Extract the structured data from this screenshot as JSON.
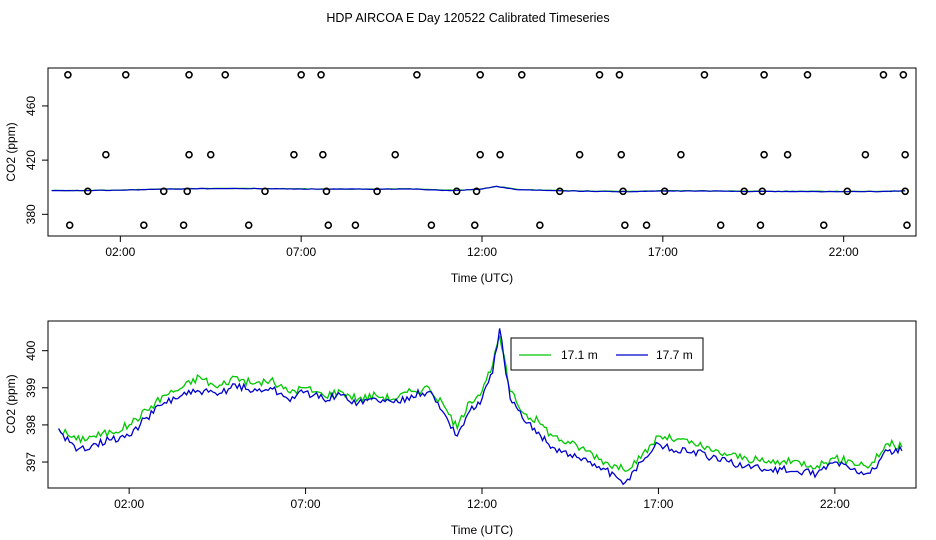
{
  "figure": {
    "title": "HDP AIRCOA E  Day 120522  Calibrated Timeseries"
  },
  "colors": {
    "series_17_1": "#00c800",
    "series_17_7": "#0000cc",
    "points": "#000000"
  },
  "chart_data": [
    {
      "type": "scatter",
      "xlabel": "Time (UTC)",
      "ylabel": "CO2 (ppm)",
      "xlim": [
        0.0,
        24.0
      ],
      "ylim": [
        364,
        488
      ],
      "xticks": [
        2,
        7,
        12,
        17,
        22
      ],
      "xtick_labels": [
        "02:00",
        "07:00",
        "12:00",
        "17:00",
        "22:00"
      ],
      "yticks": [
        380,
        420,
        460
      ],
      "ytick_labels": [
        "380",
        "420",
        "460"
      ],
      "points": {
        "x": [
          0.55,
          2.15,
          3.9,
          4.9,
          7.0,
          7.55,
          10.2,
          11.95,
          13.1,
          15.25,
          15.8,
          18.15,
          19.8,
          21.0,
          23.1,
          23.65,
          1.6,
          3.9,
          4.5,
          6.8,
          7.6,
          9.6,
          11.95,
          12.5,
          14.7,
          15.85,
          17.5,
          19.8,
          20.45,
          22.6,
          23.7,
          1.1,
          3.2,
          3.85,
          6.0,
          7.7,
          9.1,
          11.3,
          11.85,
          14.15,
          15.9,
          17.05,
          19.25,
          19.75,
          22.1,
          23.7,
          0.6,
          2.65,
          3.75,
          5.55,
          7.75,
          8.5,
          10.6,
          11.8,
          13.6,
          15.95,
          16.55,
          18.6,
          19.7,
          21.45,
          23.75
        ],
        "y": [
          483,
          483,
          483,
          483,
          483,
          483,
          483,
          483,
          483,
          483,
          483,
          483,
          483,
          483,
          483,
          483,
          424,
          424,
          424,
          424,
          424,
          424,
          424,
          424,
          424,
          424,
          424,
          424,
          424,
          424,
          424,
          397,
          397,
          397,
          397,
          397,
          397,
          397,
          397,
          397,
          397,
          397,
          397,
          397,
          397,
          397,
          372,
          372,
          372,
          372,
          372,
          372,
          372,
          372,
          372,
          372,
          372,
          372,
          372,
          372,
          372
        ]
      },
      "series": [
        {
          "name": "17.1 m",
          "x": [
            0.1,
            1,
            2,
            3,
            4,
            5,
            6,
            7,
            8,
            9,
            10,
            11,
            11.5,
            12,
            12.4,
            13,
            14,
            15,
            16,
            17,
            18,
            19,
            20,
            21,
            22,
            23,
            23.7
          ],
          "y": [
            397.6,
            397.6,
            397.9,
            398.6,
            399.0,
            399.1,
            399.0,
            398.8,
            398.7,
            398.6,
            398.9,
            397.8,
            397.9,
            398.8,
            400.7,
            398.3,
            397.7,
            397.2,
            396.9,
            397.4,
            397.4,
            397.2,
            397.0,
            397.0,
            396.9,
            396.9,
            397.4
          ]
        },
        {
          "name": "17.7 m",
          "x": [
            0.1,
            1,
            2,
            3,
            4,
            5,
            6,
            7,
            8,
            9,
            10,
            11,
            11.5,
            12,
            12.4,
            13,
            14,
            15,
            16,
            17,
            18,
            19,
            20,
            21,
            22,
            23,
            23.7
          ],
          "y": [
            397.4,
            397.5,
            397.8,
            398.5,
            398.9,
            399.0,
            398.9,
            398.7,
            398.6,
            398.5,
            398.8,
            397.7,
            397.8,
            398.7,
            400.6,
            398.1,
            397.5,
            397.0,
            396.7,
            397.2,
            397.2,
            397.0,
            396.9,
            396.8,
            396.7,
            396.8,
            397.3
          ]
        }
      ]
    },
    {
      "type": "line",
      "xlabel": "Time (UTC)",
      "ylabel": "CO2 (ppm)",
      "xlim": [
        -0.3,
        24.3
      ],
      "ylim": [
        396.3,
        400.8
      ],
      "xticks": [
        2,
        7,
        12,
        17,
        22
      ],
      "xtick_labels": [
        "02:00",
        "07:00",
        "12:00",
        "17:00",
        "22:00"
      ],
      "yticks": [
        397,
        398,
        399,
        400
      ],
      "ytick_labels": [
        "397",
        "398",
        "399",
        "400"
      ],
      "legend": {
        "position": "top-right-of-center",
        "entries": [
          "17.1 m",
          "17.7 m"
        ]
      },
      "series": [
        {
          "name": "17.1 m",
          "x": [
            0.0,
            0.5,
            1.0,
            1.5,
            2.0,
            2.5,
            3.0,
            3.5,
            4.0,
            4.5,
            5.0,
            5.5,
            6.0,
            6.5,
            7.0,
            7.5,
            8.0,
            8.5,
            9.0,
            9.5,
            10.0,
            10.5,
            11.0,
            11.3,
            11.6,
            12.0,
            12.3,
            12.5,
            12.8,
            13.2,
            13.6,
            14.0,
            14.5,
            15.0,
            15.5,
            16.0,
            16.5,
            17.0,
            17.5,
            18.0,
            18.5,
            19.0,
            19.5,
            20.0,
            20.5,
            21.0,
            21.5,
            22.0,
            22.5,
            23.0,
            23.5,
            23.9
          ],
          "y": [
            397.9,
            397.6,
            397.7,
            397.8,
            398.0,
            398.4,
            398.8,
            399.0,
            399.3,
            399.0,
            399.3,
            399.1,
            399.2,
            398.9,
            399.0,
            398.8,
            398.9,
            398.7,
            398.8,
            398.7,
            398.9,
            399.0,
            398.4,
            397.9,
            398.6,
            398.9,
            399.6,
            400.4,
            398.9,
            398.3,
            398.1,
            397.7,
            397.5,
            397.3,
            397.0,
            396.8,
            397.1,
            397.7,
            397.6,
            397.5,
            397.3,
            397.2,
            397.1,
            397.0,
            397.0,
            397.0,
            396.9,
            397.1,
            397.0,
            396.9,
            397.5,
            397.4
          ]
        },
        {
          "name": "17.7 m",
          "x": [
            0.0,
            0.5,
            1.0,
            1.5,
            2.0,
            2.5,
            3.0,
            3.5,
            4.0,
            4.5,
            5.0,
            5.5,
            6.0,
            6.5,
            7.0,
            7.5,
            8.0,
            8.5,
            9.0,
            9.5,
            10.0,
            10.5,
            11.0,
            11.3,
            11.6,
            12.0,
            12.3,
            12.5,
            12.8,
            13.2,
            13.6,
            14.0,
            14.5,
            15.0,
            15.5,
            16.0,
            16.5,
            17.0,
            17.5,
            18.0,
            18.5,
            19.0,
            19.5,
            20.0,
            20.5,
            21.0,
            21.5,
            22.0,
            22.5,
            23.0,
            23.5,
            23.9
          ],
          "y": [
            397.9,
            397.3,
            397.5,
            397.6,
            397.7,
            398.2,
            398.6,
            398.8,
            398.9,
            398.8,
            399.1,
            398.9,
            399.0,
            398.7,
            398.9,
            398.7,
            398.8,
            398.6,
            398.7,
            398.6,
            398.8,
            398.9,
            398.2,
            397.7,
            398.3,
            398.7,
            399.4,
            400.6,
            398.7,
            398.1,
            397.8,
            397.4,
            397.2,
            397.0,
            396.8,
            396.4,
            397.0,
            397.5,
            397.3,
            397.3,
            397.1,
            397.0,
            396.9,
            396.8,
            396.8,
            396.7,
            396.7,
            397.0,
            396.8,
            396.7,
            397.3,
            397.3
          ]
        }
      ]
    }
  ]
}
